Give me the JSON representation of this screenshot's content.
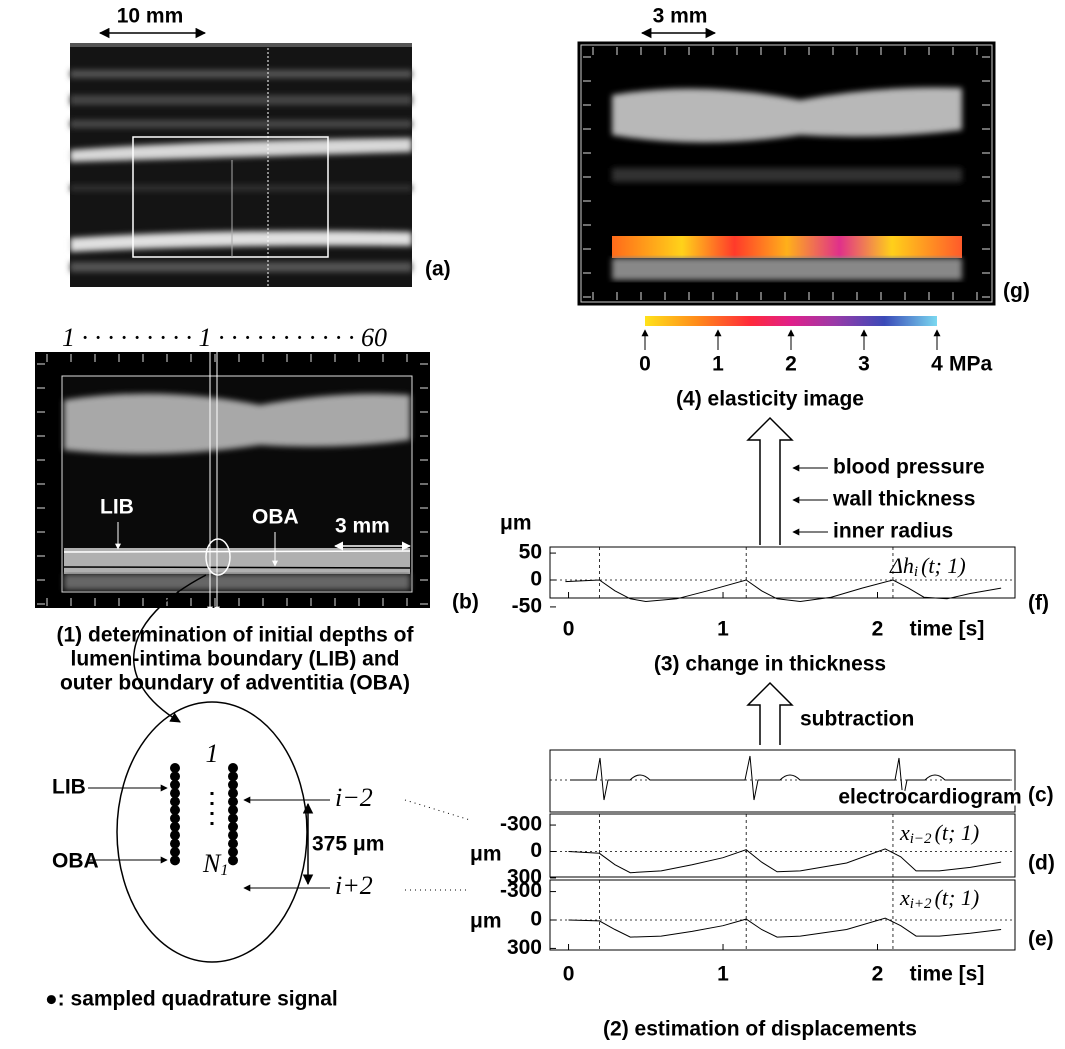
{
  "panel_a": {
    "scale": "10 mm",
    "label": "(a)"
  },
  "panel_g": {
    "scale": "3 mm",
    "label": "(g)"
  },
  "colorbar": {
    "ticks": [
      0,
      1,
      2,
      3,
      4
    ],
    "unit": "MPa",
    "xlim": [
      0,
      4
    ],
    "caption": "(4) elasticity image"
  },
  "panel_b": {
    "index": "1 · · · · · · · · · 1 · · · · · · · · · · · 60",
    "lib": "LIB",
    "oba": "OBA",
    "scale": "3 mm",
    "label": "(b)"
  },
  "step1": [
    "(1) determination of initial depths of",
    "lumen-intima boundary (LIB) and",
    "outer boundary of adventitia (OBA)"
  ],
  "sampling": {
    "top": "1",
    "bottom_main": "N",
    "bottom_sub": "1",
    "lib": "LIB",
    "oba": "OBA",
    "upper": "i−2",
    "lower": "i+2",
    "spacing": "375 μm",
    "legend": "●: sampled quadrature signal"
  },
  "inputs": [
    "blood pressure",
    "wall thickness",
    "inner radius"
  ],
  "subtraction": "subtraction",
  "ecg": {
    "label": "electrocardiogram",
    "panel": "(c)"
  },
  "step3": "(3) change in thickness",
  "step2": "(2) estimation of displacements",
  "charts": [
    {
      "type": "line",
      "label": "(f)",
      "ylabel": "μm",
      "xlabel": "time [s]",
      "annotation": {
        "main": "Δh",
        "sub": "i",
        "rest": "(t; 1)"
      },
      "x": [
        -0.02,
        0.2,
        0.3,
        0.4,
        0.5,
        0.7,
        0.9,
        1.15,
        1.25,
        1.35,
        1.5,
        1.7,
        1.9,
        2.1,
        2.2,
        2.3,
        2.45,
        2.6,
        2.8
      ],
      "values": [
        -3,
        0,
        -20,
        -35,
        -40,
        -35,
        -20,
        0,
        -20,
        -35,
        -40,
        -32,
        -15,
        0,
        -15,
        -32,
        -35,
        -25,
        -15
      ],
      "xlim": [
        -0.12,
        2.89
      ],
      "ylim": [
        -65,
        65
      ],
      "yticks": [
        -50,
        0,
        50
      ],
      "xticks": [
        0,
        1,
        2
      ],
      "events": [
        0.2,
        1.15,
        2.1
      ],
      "y_inverted": false
    },
    {
      "type": "line",
      "label": "(d)",
      "ylabel": "μm",
      "annotation": {
        "main": "x",
        "sub": "i−2",
        "rest": "(t; 1)"
      },
      "x": [
        0,
        0.2,
        0.3,
        0.4,
        0.6,
        0.8,
        1.0,
        1.15,
        1.25,
        1.35,
        1.5,
        1.8,
        2.05,
        2.15,
        2.25,
        2.4,
        2.6,
        2.8
      ],
      "values": [
        0,
        20,
        150,
        240,
        220,
        150,
        70,
        -20,
        120,
        230,
        220,
        130,
        -30,
        60,
        220,
        220,
        180,
        120
      ],
      "xlim": [
        -0.12,
        2.89
      ],
      "ylim": [
        -380,
        380
      ],
      "yticks": [
        -300,
        0,
        300
      ],
      "events": [
        0.2,
        1.15,
        2.1
      ],
      "y_inverted": true
    },
    {
      "type": "line",
      "label": "(e)",
      "ylabel": "μm",
      "xlabel": "time [s]",
      "annotation": {
        "main": "x",
        "sub": "i+2",
        "rest": "(t; 1)"
      },
      "x": [
        0,
        0.2,
        0.3,
        0.4,
        0.6,
        0.8,
        1.0,
        1.15,
        1.25,
        1.35,
        1.5,
        1.8,
        2.05,
        2.15,
        2.25,
        2.4,
        2.6,
        2.8
      ],
      "values": [
        0,
        10,
        100,
        180,
        170,
        120,
        60,
        -10,
        100,
        180,
        170,
        100,
        -20,
        60,
        170,
        170,
        140,
        100
      ],
      "xlim": [
        -0.12,
        2.89
      ],
      "ylim": [
        -380,
        380
      ],
      "yticks": [
        -300,
        0,
        300
      ],
      "xticks": [
        0,
        1,
        2
      ],
      "events": [
        0.2,
        1.15,
        2.1
      ],
      "y_inverted": true
    }
  ]
}
